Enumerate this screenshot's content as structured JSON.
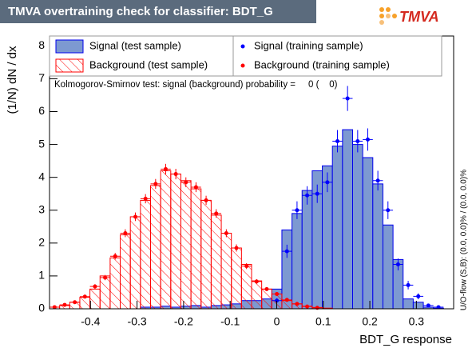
{
  "chart_data": {
    "type": "histogram",
    "title": "TMVA overtraining check for classifier: BDT_G",
    "logo": "TMVA",
    "x_label": "BDT_G response",
    "y_label": "(1/N) dN / dx",
    "annotation": "Kolmogorov-Smirnov test: signal (background) probability =     0 (    0)",
    "side_note": "U/O-flow (S,B): (0.0, 0.0)% / (0.0, 0.0)%",
    "xlim": [
      -0.488,
      0.38
    ],
    "ylim": [
      0,
      8.3
    ],
    "xticks": [
      -0.4,
      -0.3,
      -0.2,
      -0.1,
      0,
      0.1,
      0.2,
      0.3
    ],
    "yticks": [
      0,
      1,
      2,
      3,
      4,
      5,
      6,
      7,
      8
    ],
    "bins": [
      -0.488,
      -0.4663,
      -0.4446,
      -0.4229,
      -0.4012,
      -0.3795,
      -0.3578,
      -0.3361,
      -0.3144,
      -0.2927,
      -0.271,
      -0.2493,
      -0.2276,
      -0.2059,
      -0.1842,
      -0.1625,
      -0.1408,
      -0.1191,
      -0.0974,
      -0.0757,
      -0.054,
      -0.0323,
      -0.0106,
      0.0111,
      0.0328,
      0.0545,
      0.0762,
      0.0979,
      0.1196,
      0.1413,
      0.163,
      0.1847,
      0.2064,
      0.2281,
      0.2498,
      0.2715,
      0.2932,
      0.3149,
      0.3366,
      0.3583,
      0.38
    ],
    "series": [
      {
        "name": "Signal (test sample)",
        "style": "filled",
        "color": "#7d99d1",
        "edge": "#0000ee",
        "values": [
          0,
          0,
          0,
          0,
          0,
          0,
          0,
          0,
          0,
          0.05,
          0.05,
          0.08,
          0.05,
          0.08,
          0.1,
          0.05,
          0.1,
          0.12,
          0.15,
          0.25,
          0.25,
          0.3,
          0.6,
          2.4,
          2.9,
          3.6,
          4.2,
          4.35,
          4.95,
          5.45,
          5.0,
          4.6,
          3.8,
          2.55,
          1.5,
          0.3,
          0.2,
          0.05,
          0.02,
          0
        ]
      },
      {
        "name": "Background (test sample)",
        "style": "hatched",
        "color": "#ff0000",
        "edge": "#ff0000",
        "values": [
          0.05,
          0.1,
          0.2,
          0.35,
          0.6,
          1.0,
          1.55,
          2.25,
          2.8,
          3.3,
          3.75,
          4.2,
          4.1,
          3.9,
          3.65,
          3.3,
          2.85,
          2.3,
          1.85,
          1.35,
          0.85,
          0.6,
          0.45,
          0.25,
          0.15,
          0.08,
          0.04,
          0.02,
          0,
          0,
          0,
          0,
          0,
          0,
          0,
          0,
          0,
          0,
          0,
          0
        ]
      },
      {
        "name": "Signal (training sample)",
        "style": "points",
        "color": "#0000ff",
        "edge": "#0000ff",
        "values": [
          null,
          null,
          null,
          null,
          null,
          null,
          null,
          null,
          null,
          null,
          null,
          null,
          null,
          null,
          null,
          null,
          null,
          null,
          null,
          null,
          null,
          null,
          0.25,
          1.75,
          3.0,
          3.45,
          3.5,
          3.85,
          5.1,
          6.4,
          5.1,
          5.15,
          3.9,
          3.0,
          1.35,
          0.72,
          0.38,
          0.1,
          0.05,
          null
        ],
        "errors": [
          null,
          null,
          null,
          null,
          null,
          null,
          null,
          null,
          null,
          null,
          null,
          null,
          null,
          null,
          null,
          null,
          null,
          null,
          null,
          null,
          null,
          null,
          0.07,
          0.2,
          0.27,
          0.28,
          0.28,
          0.3,
          0.34,
          0.38,
          0.34,
          0.34,
          0.3,
          0.27,
          0.18,
          0.13,
          0.09,
          0.05,
          0.03,
          null
        ]
      },
      {
        "name": "Background (training sample)",
        "style": "points",
        "color": "#ff0000",
        "edge": "#ff0000",
        "values": [
          0.05,
          0.12,
          0.2,
          0.37,
          0.68,
          0.95,
          1.6,
          2.3,
          2.8,
          3.35,
          3.8,
          4.25,
          4.1,
          3.85,
          3.7,
          3.3,
          2.9,
          2.3,
          1.85,
          1.3,
          0.83,
          0.6,
          0.45,
          0.27,
          0.15,
          0.07,
          0.03,
          null,
          null,
          null,
          null,
          null,
          null,
          null,
          null,
          null,
          null,
          null,
          null,
          null
        ],
        "errors": [
          0.02,
          0.03,
          0.04,
          0.05,
          0.07,
          0.08,
          0.1,
          0.12,
          0.13,
          0.14,
          0.15,
          0.16,
          0.16,
          0.15,
          0.15,
          0.14,
          0.13,
          0.12,
          0.11,
          0.09,
          0.07,
          0.06,
          0.05,
          0.04,
          0.03,
          0.02,
          0.02,
          null,
          null,
          null,
          null,
          null,
          null,
          null,
          null,
          null,
          null,
          null,
          null,
          null
        ]
      }
    ]
  }
}
